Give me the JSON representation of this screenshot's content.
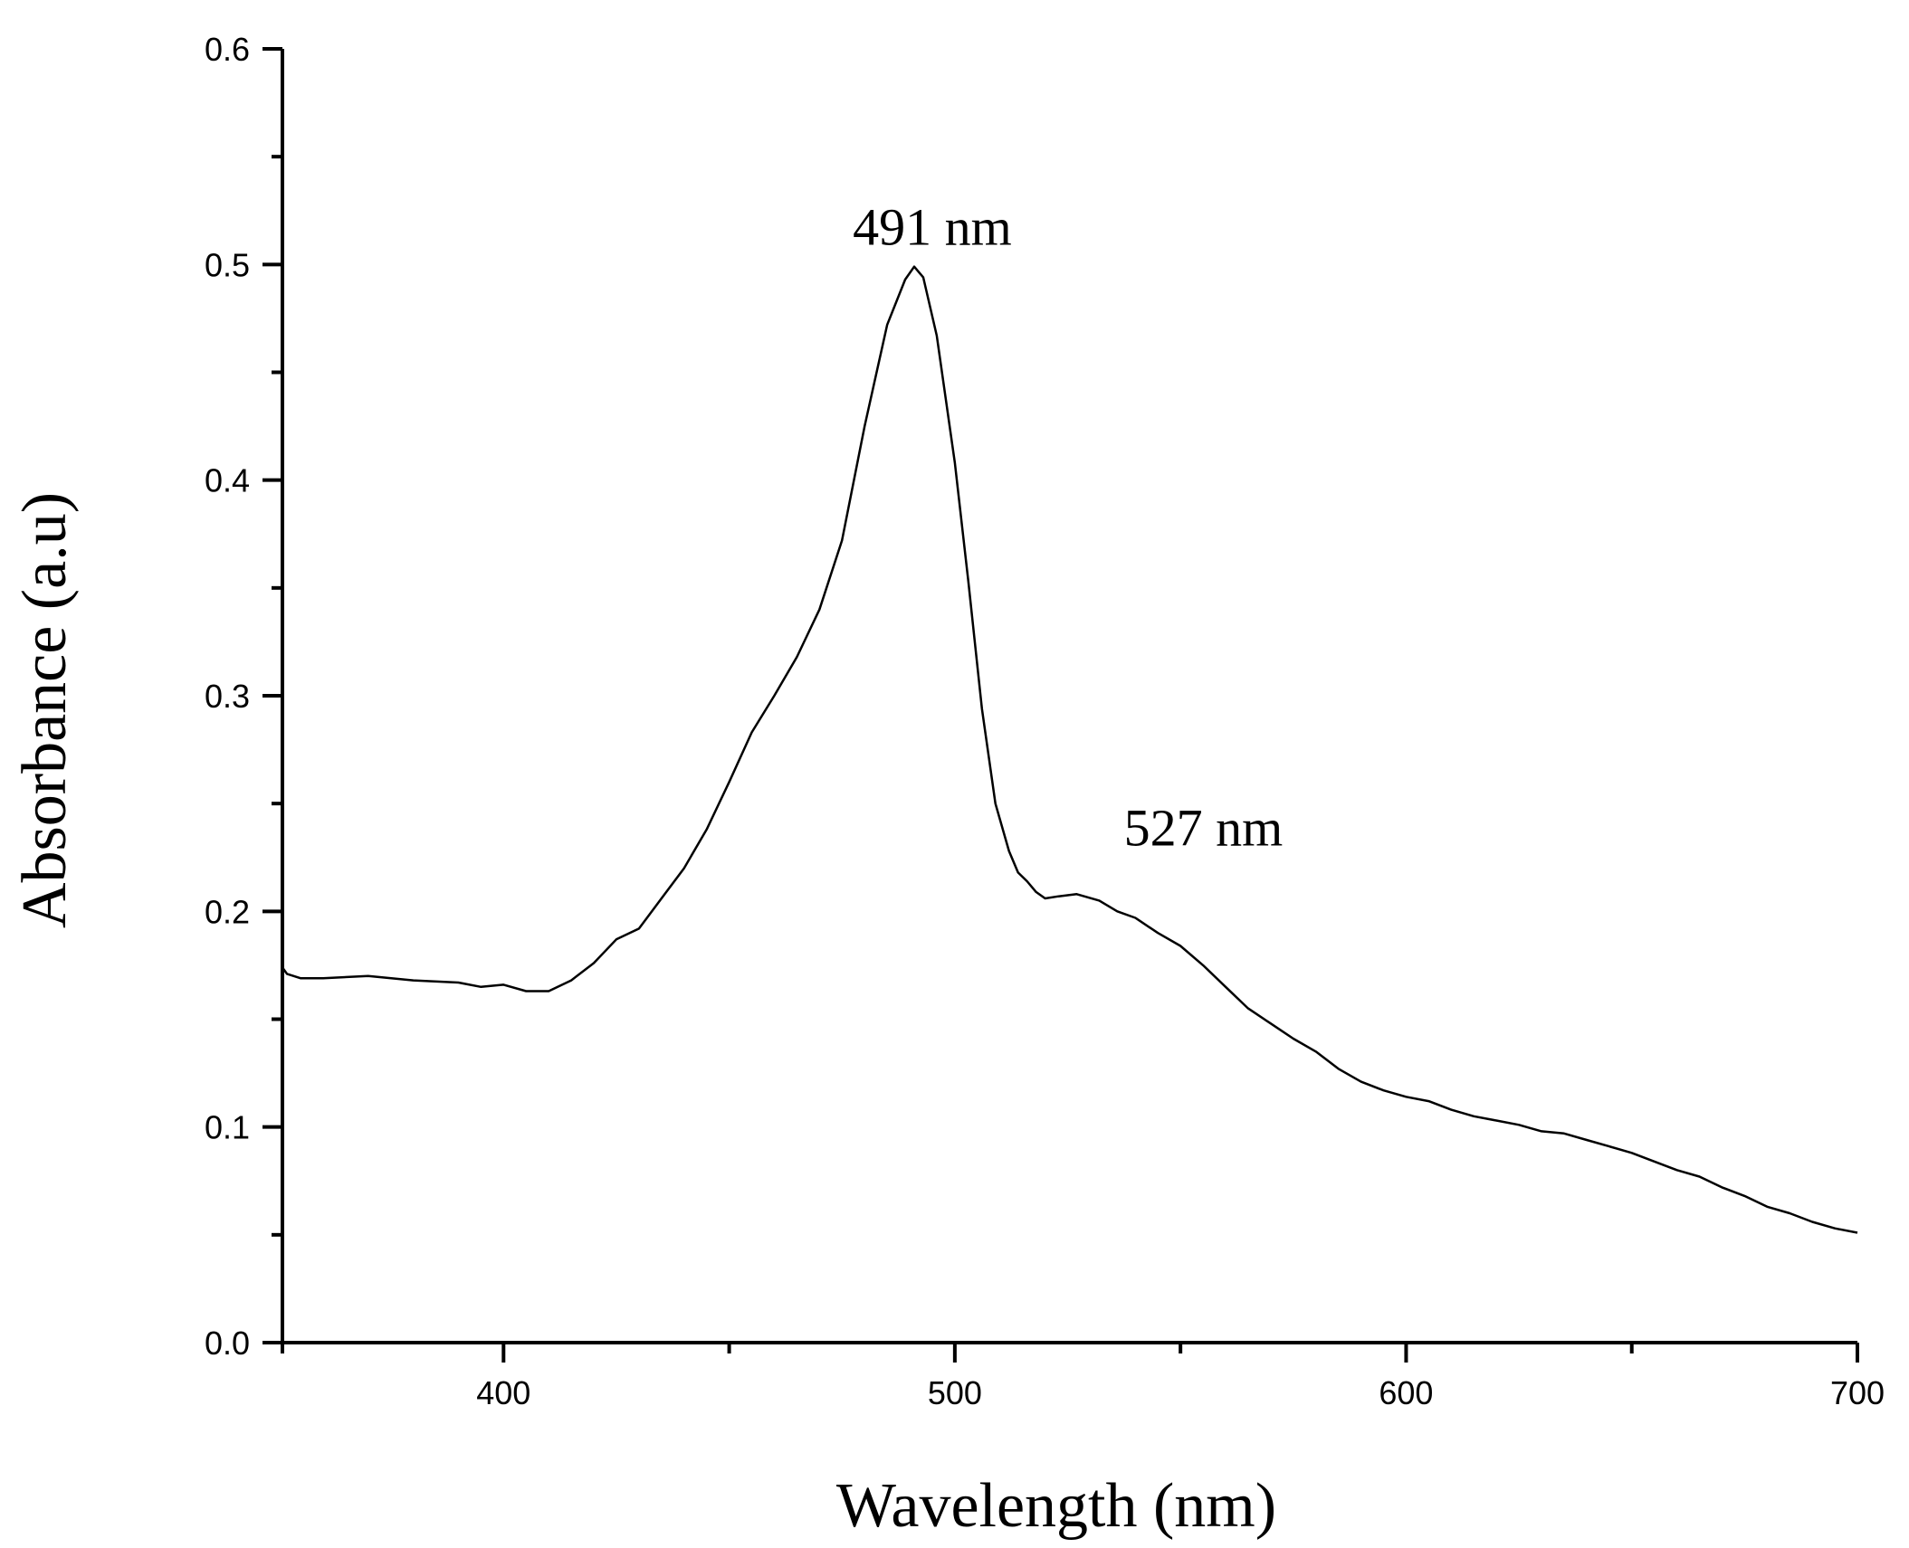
{
  "chart_data": {
    "type": "line",
    "title": "",
    "xlabel": "Wavelength (nm)",
    "ylabel": "Absorbance (a.u)",
    "xlim": [
      351,
      700
    ],
    "ylim": [
      0.0,
      0.6
    ],
    "x_ticks": [
      {
        "value": 400,
        "label": "400"
      },
      {
        "value": 500,
        "label": "500"
      },
      {
        "value": 600,
        "label": "600"
      },
      {
        "value": 700,
        "label": "700"
      }
    ],
    "x_minor_ticks": [
      350,
      450,
      550,
      650
    ],
    "y_ticks": [
      {
        "value": 0.0,
        "label": "0.0"
      },
      {
        "value": 0.1,
        "label": "0.1"
      },
      {
        "value": 0.2,
        "label": "0.2"
      },
      {
        "value": 0.3,
        "label": "0.3"
      },
      {
        "value": 0.4,
        "label": "0.4"
      },
      {
        "value": 0.5,
        "label": "0.5"
      },
      {
        "value": 0.6,
        "label": "0.6"
      }
    ],
    "y_minor_ticks": [
      0.05,
      0.15,
      0.25,
      0.35,
      0.45,
      0.55
    ],
    "grid": false,
    "legend": "none",
    "series": [
      {
        "line_color": "#000000",
        "x": [
          351,
          352,
          355,
          360,
          370,
          380,
          390,
          395,
          400,
          405,
          410,
          415,
          420,
          425,
          430,
          435,
          440,
          445,
          450,
          455,
          460,
          465,
          470,
          475,
          480,
          485,
          489,
          491,
          493,
          496,
          500,
          503,
          506,
          509,
          512,
          514,
          516,
          518,
          520,
          523,
          527,
          532,
          536,
          540,
          545,
          550,
          555,
          560,
          565,
          570,
          575,
          580,
          585,
          590,
          595,
          600,
          605,
          610,
          615,
          620,
          625,
          630,
          635,
          640,
          645,
          650,
          655,
          660,
          665,
          670,
          675,
          680,
          685,
          690,
          695,
          700
        ],
        "y": [
          0.174,
          0.171,
          0.169,
          0.169,
          0.17,
          0.168,
          0.167,
          0.165,
          0.166,
          0.163,
          0.163,
          0.168,
          0.176,
          0.187,
          0.192,
          0.206,
          0.22,
          0.238,
          0.26,
          0.283,
          0.3,
          0.318,
          0.34,
          0.372,
          0.425,
          0.472,
          0.493,
          0.499,
          0.494,
          0.467,
          0.408,
          0.353,
          0.294,
          0.25,
          0.228,
          0.218,
          0.214,
          0.209,
          0.206,
          0.207,
          0.208,
          0.205,
          0.2,
          0.197,
          0.19,
          0.184,
          0.175,
          0.165,
          0.155,
          0.148,
          0.141,
          0.135,
          0.127,
          0.121,
          0.117,
          0.114,
          0.112,
          0.108,
          0.105,
          0.103,
          0.101,
          0.098,
          0.097,
          0.094,
          0.091,
          0.088,
          0.084,
          0.08,
          0.077,
          0.072,
          0.068,
          0.063,
          0.06,
          0.056,
          0.053,
          0.051
        ]
      }
    ],
    "annotations": [
      {
        "text": "491 nm",
        "x": 491,
        "y": 0.499
      },
      {
        "text": "527 nm",
        "x": 527,
        "y": 0.208
      }
    ]
  }
}
